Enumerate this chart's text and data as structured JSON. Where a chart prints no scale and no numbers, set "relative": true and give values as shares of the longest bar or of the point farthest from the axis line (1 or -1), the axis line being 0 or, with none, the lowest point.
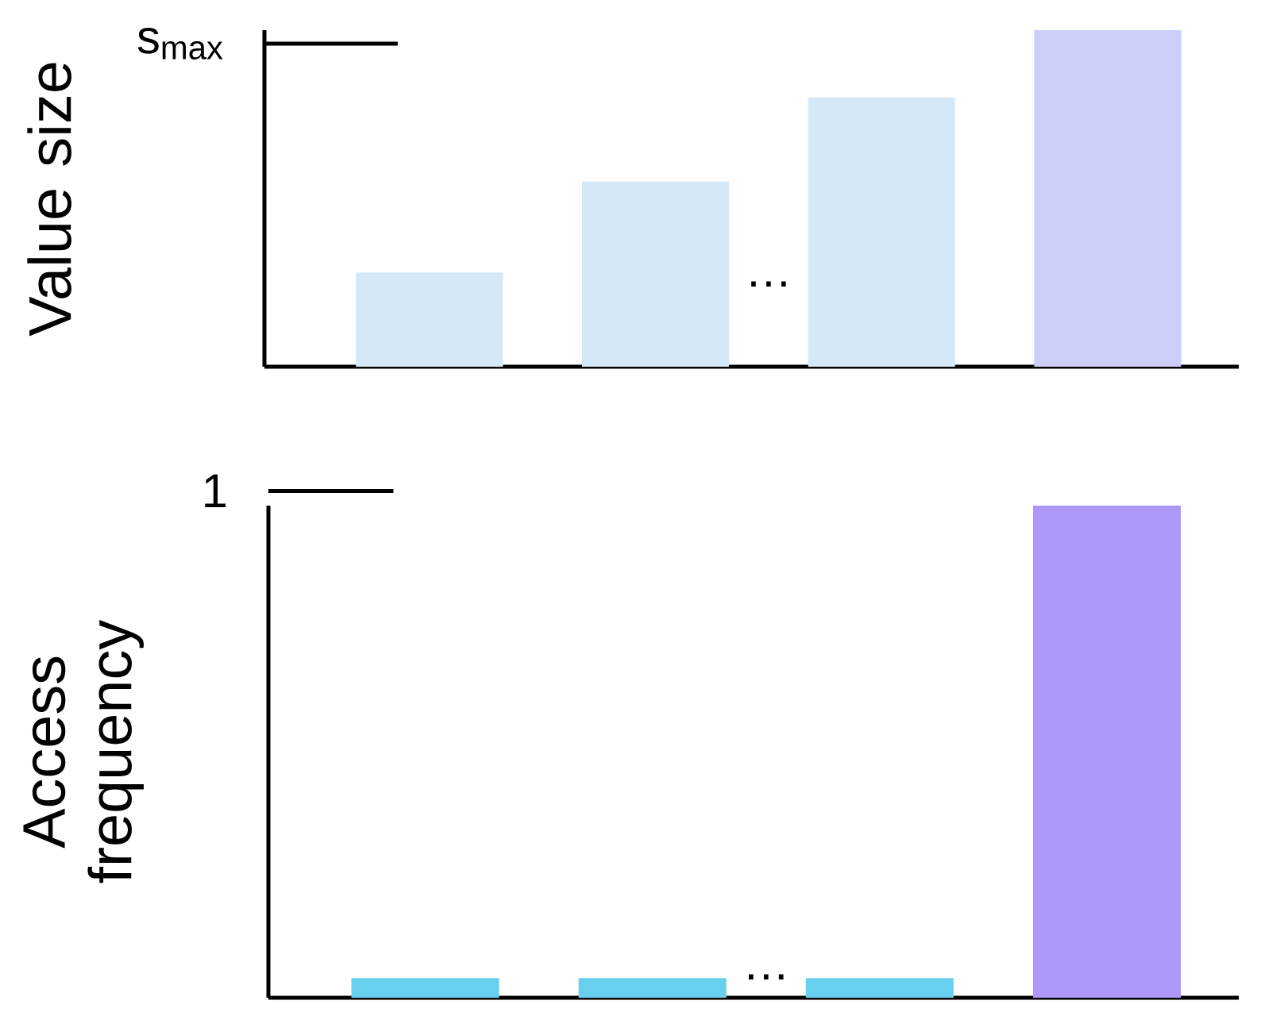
{
  "chart_data": [
    {
      "type": "bar",
      "ylabel": "Value size",
      "relative": true,
      "categories": [
        null,
        null,
        null,
        null
      ],
      "values": [
        0.28,
        0.55,
        0.8,
        1
      ],
      "colors": [
        "#d5e8f8",
        "#d5e8f8",
        "#d5e8f8",
        "#cccdf8"
      ],
      "annotations": [
        "s$_{max}$",
        "…"
      ]
    },
    {
      "type": "bar",
      "ylabel": "Access frequency",
      "relative": true,
      "categories": [
        null,
        null,
        null,
        null
      ],
      "values": [
        0.04,
        0.04,
        0.04,
        1
      ],
      "colors": [
        "#67d0ee",
        "#67d0ee",
        "#67d0ee",
        "#ae98f7"
      ],
      "annotations": [
        "1",
        "…"
      ]
    }
  ]
}
